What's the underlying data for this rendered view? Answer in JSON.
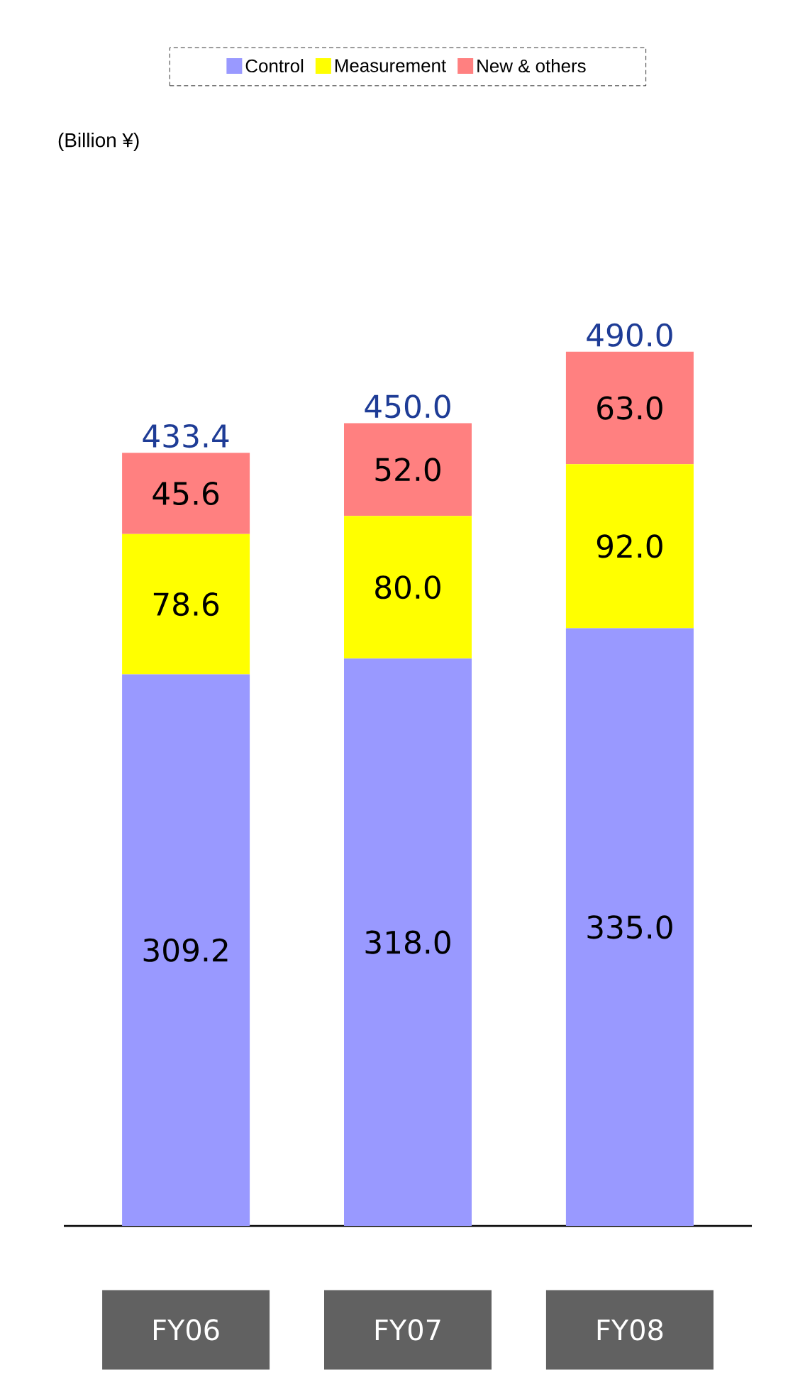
{
  "chart_data": {
    "type": "bar",
    "stacked": true,
    "annotations": [
      "(Billion ¥)"
    ],
    "categories": [
      "FY06",
      "FY07",
      "FY08"
    ],
    "series": [
      {
        "name": "Control",
        "color": "#9999ff",
        "values": [
          309.2,
          318.0,
          335.0
        ],
        "value_labels": [
          "309.2",
          "318.0",
          "335.0"
        ]
      },
      {
        "name": "Measurement",
        "color": "#ffff00",
        "values": [
          78.6,
          80.0,
          92.0
        ],
        "value_labels": [
          "78.6",
          "80.0",
          "92.0"
        ]
      },
      {
        "name": "New & others",
        "color": "#ff8080",
        "values": [
          45.6,
          52.0,
          63.0
        ],
        "value_labels": [
          "45.6",
          "52.0",
          "63.0"
        ]
      }
    ],
    "totals": [
      "433.4",
      "450.0",
      "490.0"
    ],
    "legend": "top"
  }
}
